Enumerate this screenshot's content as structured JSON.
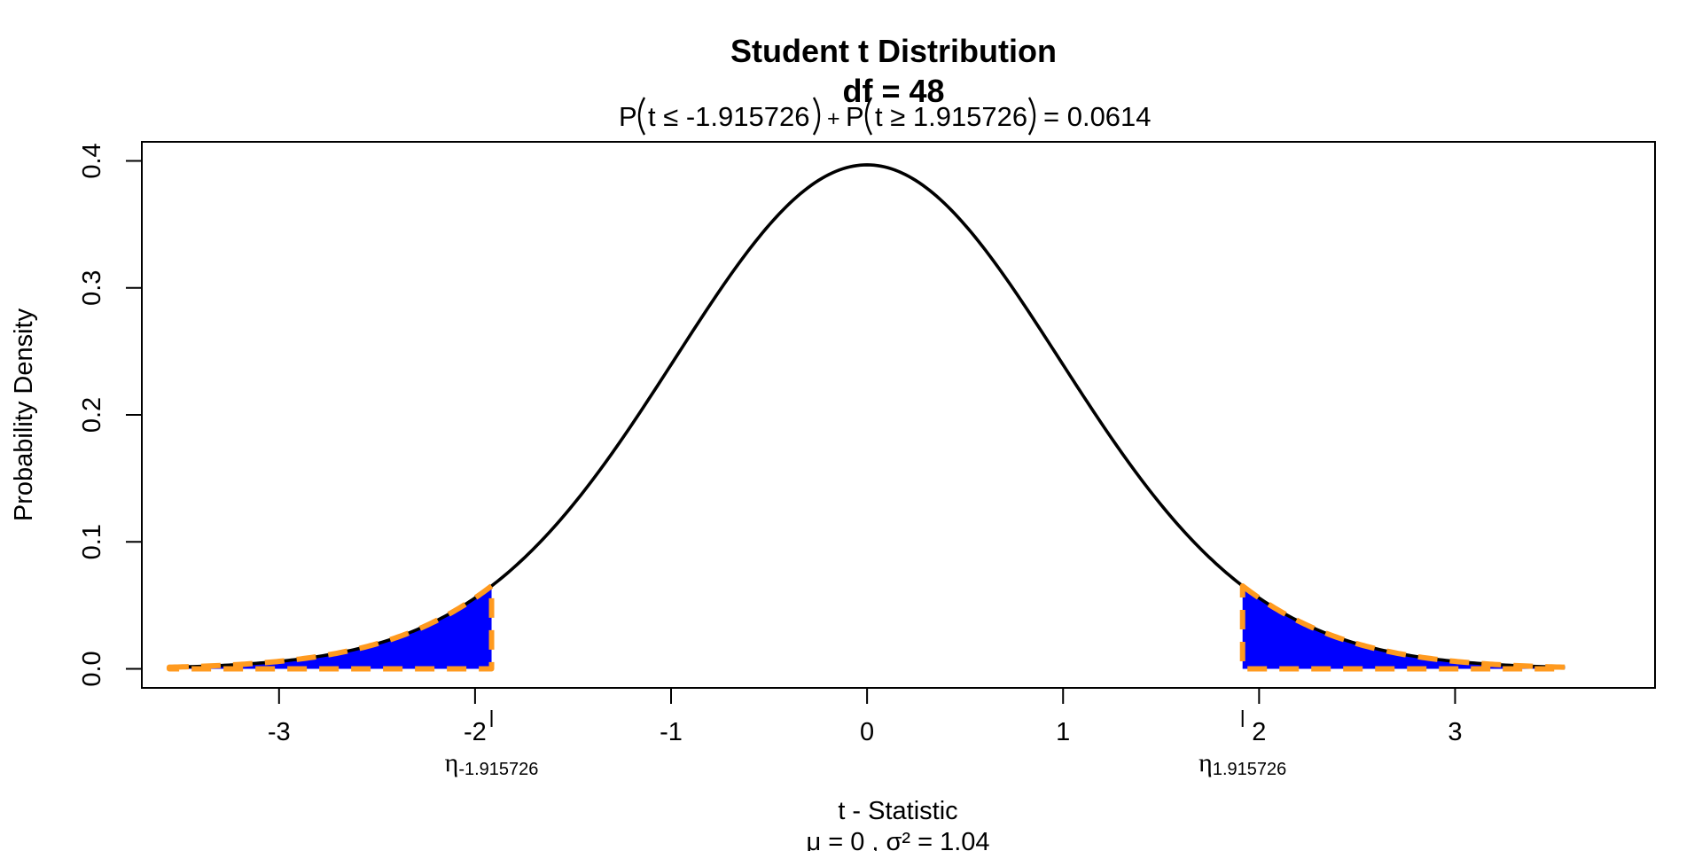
{
  "chart_data": {
    "type": "area",
    "title": "Student t Distribution",
    "df_label": "df  =  48",
    "df": 48,
    "subtitle": {
      "p1": "P",
      "left_inner": "t ≤ -1.915726",
      "plus": "+",
      "p2": "P",
      "right_inner": "t ≥ 1.915726",
      "equals": "= 0.0614"
    },
    "xlabel": "t - Statistic",
    "params_label": "μ =  0 , σ² =  1.04",
    "ylabel": "Probability Density",
    "xlim": [
      -3.7,
      4.02
    ],
    "ylim": [
      -0.015,
      0.415
    ],
    "xticks": [
      -3,
      -2,
      -1,
      0,
      1,
      2,
      3
    ],
    "xtick_labels": [
      "-3",
      "-2",
      "-1",
      "0",
      "1",
      "2",
      "3"
    ],
    "yticks": [
      0.0,
      0.1,
      0.2,
      0.3,
      0.4
    ],
    "ytick_labels": [
      "0.0",
      "0.1",
      "0.2",
      "0.3",
      "0.4"
    ],
    "curve_range": [
      -3.56,
      3.56
    ],
    "critical_values": [
      -1.915726,
      1.915726
    ],
    "probability": 0.0614,
    "shaded_regions": [
      {
        "from": -3.56,
        "to": -1.915726
      },
      {
        "from": 1.915726,
        "to": 3.56
      }
    ],
    "annotations": {
      "left": {
        "symbol": "η",
        "subscript": "-1.915726",
        "x": -1.915726
      },
      "right": {
        "symbol": "η",
        "subscript": "1.915726",
        "x": 1.915726
      }
    },
    "colors": {
      "curve": "#000000",
      "fill": "#0000ff",
      "dash": "#ff9a1f"
    },
    "grid": false,
    "legend": "none"
  }
}
